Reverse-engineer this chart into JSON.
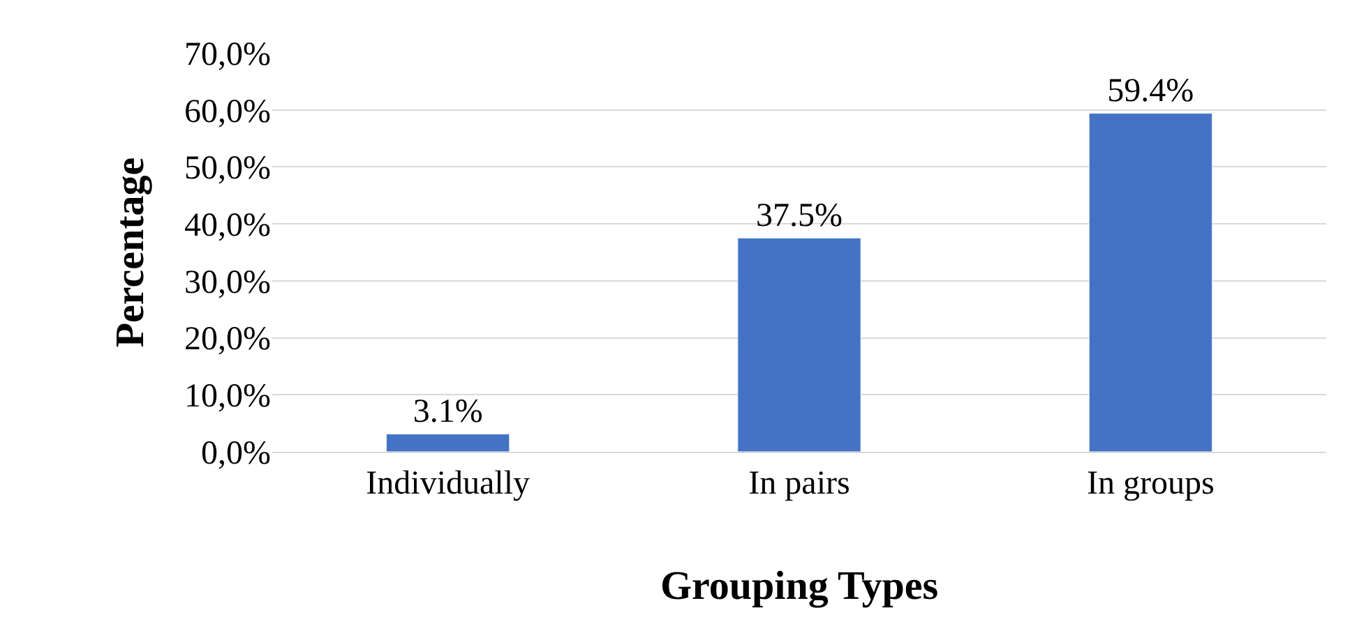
{
  "chart_data": {
    "type": "bar",
    "xlabel": "Grouping Types",
    "ylabel": "Percentage",
    "categories": [
      "Individually",
      "In pairs",
      "In groups"
    ],
    "values": [
      3.1,
      37.5,
      59.4
    ],
    "color": "#4472c4",
    "value_labels": [
      "3.1%",
      "37.5%",
      "59.4%"
    ],
    "ylim": [
      0,
      70
    ],
    "yticks": [
      {
        "value": 0,
        "label": "0,0%"
      },
      {
        "value": 10,
        "label": "10,0%"
      },
      {
        "value": 20,
        "label": "20,0%"
      },
      {
        "value": 30,
        "label": "30,0%"
      },
      {
        "value": 40,
        "label": "40,0%"
      },
      {
        "value": 50,
        "label": "50,0%"
      },
      {
        "value": 60,
        "label": "60,0%"
      },
      {
        "value": 70,
        "label": "70,0%"
      }
    ],
    "grid": "y"
  }
}
